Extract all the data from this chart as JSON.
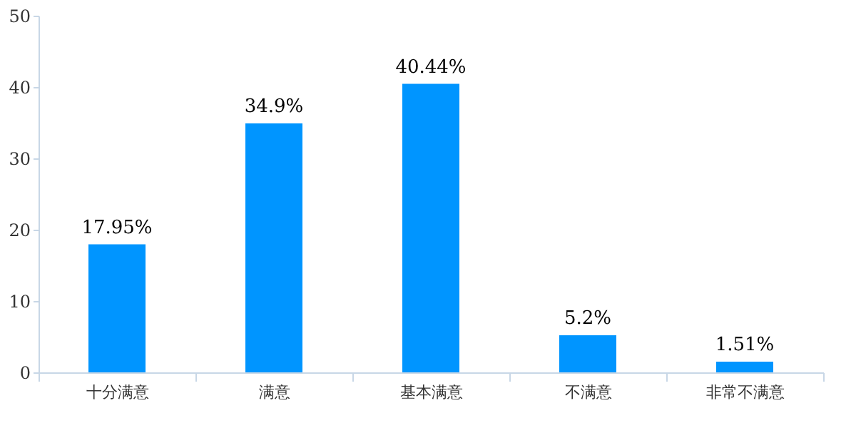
{
  "chart_data": {
    "type": "bar",
    "categories": [
      "十分满意",
      "满意",
      "基本满意",
      "不满意",
      "非常不满意"
    ],
    "values": [
      17.95,
      34.9,
      40.44,
      5.2,
      1.51
    ],
    "value_labels": [
      "17.95%",
      "34.9%",
      "40.44%",
      "5.2%",
      "1.51%"
    ],
    "color": "#0095ff",
    "ylim": [
      0,
      50
    ],
    "yticks": [
      0,
      10,
      20,
      30,
      40,
      50
    ],
    "grid": false
  }
}
